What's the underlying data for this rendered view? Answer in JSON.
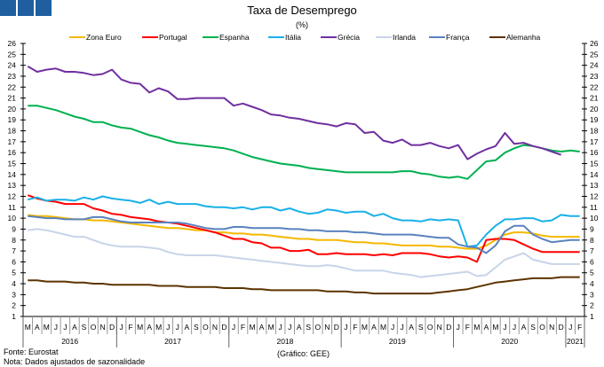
{
  "header": {
    "logo_color": "#1f5fa0"
  },
  "footer": {
    "source": "Fonte: Eurostat",
    "note": "Nota: Dados ajustados de sazonalidade",
    "credit": "(Gráfico: GEE)"
  },
  "chart_data": {
    "type": "line",
    "title": "Taxa de Desemprego",
    "subtitle": "(%)",
    "xlabel": "",
    "ylabel": "",
    "ylim": [
      1,
      26
    ],
    "yticks": [
      1,
      2,
      3,
      4,
      5,
      6,
      7,
      8,
      9,
      10,
      11,
      12,
      13,
      14,
      15,
      16,
      17,
      18,
      19,
      20,
      21,
      22,
      23,
      24,
      25,
      26
    ],
    "grid": false,
    "legend_position": "top",
    "months": [
      "M",
      "A",
      "M",
      "J",
      "J",
      "A",
      "S",
      "O",
      "N",
      "D",
      "J",
      "F",
      "M",
      "A",
      "M",
      "J",
      "J",
      "A",
      "S",
      "O",
      "N",
      "D",
      "J",
      "F",
      "M",
      "A",
      "M",
      "J",
      "J",
      "A",
      "S",
      "O",
      "N",
      "D",
      "J",
      "F",
      "M",
      "A",
      "M",
      "J",
      "J",
      "A",
      "S",
      "O",
      "N",
      "D",
      "J",
      "F",
      "M",
      "A",
      "M",
      "J",
      "J",
      "A",
      "S",
      "O",
      "N",
      "D",
      "J",
      "F"
    ],
    "years": [
      {
        "label": "2016",
        "months": 10
      },
      {
        "label": "2017",
        "months": 12
      },
      {
        "label": "2018",
        "months": 12
      },
      {
        "label": "2019",
        "months": 12
      },
      {
        "label": "2020",
        "months": 12
      },
      {
        "label": "2021",
        "months": 2
      }
    ],
    "series": [
      {
        "name": "Zona Euro",
        "color": "#f5b800",
        "values": [
          10.3,
          10.2,
          10.2,
          10.1,
          10.0,
          9.9,
          9.9,
          9.8,
          9.8,
          9.7,
          9.6,
          9.5,
          9.4,
          9.3,
          9.2,
          9.1,
          9.1,
          9.0,
          8.9,
          8.9,
          8.7,
          8.7,
          8.6,
          8.6,
          8.5,
          8.5,
          8.4,
          8.3,
          8.2,
          8.1,
          8.1,
          8.0,
          8.0,
          8.0,
          7.9,
          7.8,
          7.8,
          7.7,
          7.7,
          7.6,
          7.5,
          7.5,
          7.5,
          7.5,
          7.4,
          7.4,
          7.3,
          7.2,
          7.2,
          7.5,
          8.0,
          8.5,
          8.7,
          8.7,
          8.6,
          8.4,
          8.3,
          8.3,
          8.3,
          8.3
        ]
      },
      {
        "name": "Portugal",
        "color": "#ff0000",
        "values": [
          12.1,
          11.8,
          11.6,
          11.5,
          11.3,
          11.3,
          11.3,
          10.9,
          10.7,
          10.4,
          10.3,
          10.1,
          10.0,
          9.9,
          9.7,
          9.6,
          9.5,
          9.3,
          9.1,
          8.9,
          8.7,
          8.4,
          8.1,
          8.1,
          7.8,
          7.7,
          7.3,
          7.3,
          7.0,
          7.0,
          7.1,
          6.7,
          6.7,
          6.8,
          6.7,
          6.7,
          6.7,
          6.6,
          6.7,
          6.6,
          6.8,
          6.8,
          6.8,
          6.7,
          6.5,
          6.4,
          6.5,
          6.4,
          6.0,
          8.0,
          8.1,
          8.1,
          8.0,
          7.6,
          7.2,
          6.9,
          6.9,
          6.9,
          6.9,
          6.9
        ]
      },
      {
        "name": "Espanha",
        "color": "#00b050",
        "values": [
          20.3,
          20.3,
          20.1,
          19.9,
          19.6,
          19.3,
          19.1,
          18.8,
          18.8,
          18.5,
          18.3,
          18.2,
          17.9,
          17.6,
          17.4,
          17.1,
          16.9,
          16.8,
          16.7,
          16.6,
          16.5,
          16.4,
          16.2,
          15.9,
          15.6,
          15.4,
          15.2,
          15.0,
          14.9,
          14.8,
          14.6,
          14.5,
          14.4,
          14.3,
          14.2,
          14.2,
          14.2,
          14.2,
          14.2,
          14.2,
          14.3,
          14.3,
          14.1,
          14.0,
          13.8,
          13.7,
          13.8,
          13.6,
          14.4,
          15.2,
          15.3,
          16.0,
          16.4,
          16.7,
          16.6,
          16.4,
          16.2,
          16.1,
          16.2,
          16.1
        ]
      },
      {
        "name": "Itália",
        "color": "#1ab0e8",
        "values": [
          11.7,
          11.9,
          11.6,
          11.7,
          11.7,
          11.6,
          11.9,
          11.7,
          12.0,
          11.8,
          11.7,
          11.6,
          11.4,
          11.7,
          11.3,
          11.5,
          11.3,
          11.3,
          11.3,
          11.1,
          11.0,
          11.0,
          10.9,
          11.0,
          10.8,
          11.0,
          11.0,
          10.7,
          10.9,
          10.6,
          10.4,
          10.5,
          10.8,
          10.7,
          10.5,
          10.6,
          10.6,
          10.2,
          10.4,
          10.0,
          9.8,
          9.8,
          9.7,
          9.9,
          9.8,
          9.9,
          9.8,
          7.4,
          7.5,
          8.5,
          9.3,
          9.9,
          9.9,
          10.0,
          10.0,
          9.7,
          9.8,
          10.3,
          10.2,
          10.2
        ]
      },
      {
        "name": "Grécia",
        "color": "#7030a0",
        "values": [
          23.9,
          23.4,
          23.6,
          23.7,
          23.4,
          23.4,
          23.3,
          23.1,
          23.2,
          23.6,
          22.7,
          22.4,
          22.3,
          21.5,
          21.9,
          21.6,
          20.9,
          20.9,
          21.0,
          21.0,
          21.0,
          21.0,
          20.3,
          20.5,
          20.2,
          19.9,
          19.5,
          19.4,
          19.2,
          19.1,
          18.9,
          18.7,
          18.6,
          18.4,
          18.7,
          18.6,
          17.8,
          17.9,
          17.1,
          16.9,
          17.2,
          16.7,
          16.7,
          16.9,
          16.6,
          16.4,
          16.7,
          15.4,
          15.9,
          16.3,
          16.6,
          17.8,
          16.8,
          16.9,
          16.6,
          16.4,
          16.1,
          15.8,
          null,
          null
        ]
      },
      {
        "name": "Irlanda",
        "color": "#c8d4e8",
        "values": [
          8.9,
          9.0,
          8.9,
          8.7,
          8.5,
          8.3,
          8.3,
          8.0,
          7.7,
          7.5,
          7.4,
          7.4,
          7.4,
          7.3,
          7.2,
          6.9,
          6.7,
          6.6,
          6.6,
          6.6,
          6.6,
          6.5,
          6.4,
          6.3,
          6.2,
          6.1,
          6.0,
          5.9,
          5.8,
          5.7,
          5.6,
          5.6,
          5.7,
          5.6,
          5.4,
          5.2,
          5.2,
          5.2,
          5.2,
          5.0,
          4.9,
          4.8,
          4.6,
          4.7,
          4.8,
          4.9,
          5.0,
          5.1,
          4.7,
          4.8,
          5.5,
          6.2,
          6.5,
          6.8,
          6.2,
          6.0,
          5.8,
          5.8,
          5.8,
          5.8
        ]
      },
      {
        "name": "França",
        "color": "#5a82be",
        "values": [
          10.2,
          10.1,
          10.0,
          10.0,
          9.9,
          9.9,
          9.9,
          10.1,
          10.1,
          9.9,
          9.7,
          9.6,
          9.6,
          9.6,
          9.6,
          9.6,
          9.6,
          9.5,
          9.3,
          9.1,
          9.0,
          9.0,
          9.2,
          9.2,
          9.1,
          9.1,
          9.1,
          9.1,
          9.0,
          9.0,
          8.9,
          8.9,
          8.8,
          8.8,
          8.8,
          8.7,
          8.7,
          8.6,
          8.5,
          8.5,
          8.5,
          8.5,
          8.4,
          8.3,
          8.2,
          8.2,
          7.6,
          7.4,
          7.3,
          6.8,
          7.5,
          8.8,
          9.3,
          9.3,
          8.5,
          8.1,
          7.8,
          7.9,
          8.0,
          8.0
        ]
      },
      {
        "name": "Alemanha",
        "color": "#5c3300",
        "values": [
          4.3,
          4.3,
          4.2,
          4.2,
          4.2,
          4.1,
          4.1,
          4.0,
          4.0,
          3.9,
          3.9,
          3.9,
          3.9,
          3.9,
          3.8,
          3.8,
          3.8,
          3.7,
          3.7,
          3.7,
          3.7,
          3.6,
          3.6,
          3.6,
          3.5,
          3.5,
          3.4,
          3.4,
          3.4,
          3.4,
          3.4,
          3.4,
          3.3,
          3.3,
          3.3,
          3.2,
          3.2,
          3.1,
          3.1,
          3.1,
          3.1,
          3.1,
          3.1,
          3.1,
          3.2,
          3.3,
          3.4,
          3.5,
          3.7,
          3.9,
          4.1,
          4.2,
          4.3,
          4.4,
          4.5,
          4.5,
          4.5,
          4.6,
          4.6,
          4.6
        ]
      }
    ]
  }
}
